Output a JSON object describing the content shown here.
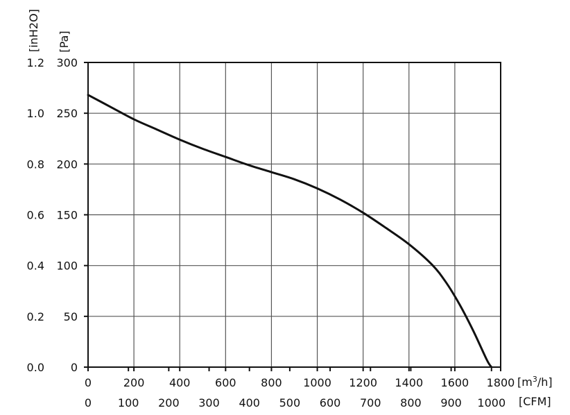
{
  "chart_data": {
    "type": "line",
    "title": "",
    "grid": true,
    "x_axis_primary": {
      "unit": "[m³/h]",
      "unit_base": "[m",
      "unit_sup": "3",
      "unit_tail": "/h]",
      "range": [
        0,
        1800
      ],
      "ticks": [
        0,
        200,
        400,
        600,
        800,
        1000,
        1200,
        1400,
        1600,
        1800
      ],
      "tick_labels": [
        "0",
        "200",
        "400",
        "600",
        "800",
        "1000",
        "1200",
        "1400",
        "1600",
        "1800"
      ]
    },
    "x_axis_secondary": {
      "unit": "[CFM]",
      "tick_labels": [
        "0",
        "100",
        "200",
        "300",
        "400",
        "500",
        "600",
        "700",
        "800",
        "900",
        "1000"
      ],
      "tick_values": [
        0,
        100,
        200,
        300,
        400,
        500,
        600,
        700,
        800,
        900,
        1000
      ]
    },
    "y_axis_primary": {
      "unit": "[Pa]",
      "range": [
        0,
        300
      ],
      "ticks": [
        0,
        50,
        100,
        150,
        200,
        250,
        300
      ],
      "tick_labels": [
        "0",
        "50",
        "100",
        "150",
        "200",
        "250",
        "300"
      ]
    },
    "y_axis_secondary": {
      "unit": "[inH2O]",
      "tick_labels": [
        "0.0",
        "0.2",
        "0.4",
        "0.6",
        "0.8",
        "1.0",
        "1.2"
      ],
      "tick_values": [
        0.0,
        0.2,
        0.4,
        0.6,
        0.8,
        1.0,
        1.2
      ]
    },
    "series": [
      {
        "color": "#111111",
        "points": [
          [
            0,
            268
          ],
          [
            100,
            256
          ],
          [
            200,
            244
          ],
          [
            300,
            234
          ],
          [
            400,
            224
          ],
          [
            500,
            215
          ],
          [
            600,
            207
          ],
          [
            700,
            199
          ],
          [
            800,
            192
          ],
          [
            900,
            185
          ],
          [
            1000,
            176
          ],
          [
            1100,
            165
          ],
          [
            1200,
            152
          ],
          [
            1300,
            137
          ],
          [
            1400,
            121
          ],
          [
            1500,
            101
          ],
          [
            1560,
            84
          ],
          [
            1620,
            62
          ],
          [
            1680,
            36
          ],
          [
            1740,
            7
          ],
          [
            1760,
            0
          ]
        ]
      }
    ]
  }
}
